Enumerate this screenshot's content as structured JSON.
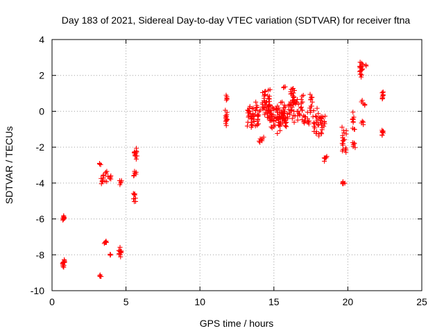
{
  "chart_data": {
    "type": "scatter",
    "title": "Day 183 of 2021, Sidereal Day-to-day VTEC variation (SDTVAR) for receiver ftna",
    "xlabel": "GPS time / hours",
    "ylabel": "SDTVAR / TECUs",
    "xlim": [
      0,
      25
    ],
    "ylim": [
      -10,
      4
    ],
    "xticks": [
      0,
      5,
      10,
      15,
      20,
      25
    ],
    "yticks": [
      -10,
      -8,
      -6,
      -4,
      -2,
      0,
      2,
      4
    ],
    "grid": true,
    "marker": "+",
    "marker_color": "#ff0000",
    "clusters": [
      {
        "x0": 0.72,
        "x1": 0.82,
        "y0": -6.1,
        "y1": -5.8,
        "n": 8
      },
      {
        "x0": 0.7,
        "x1": 0.85,
        "y0": -8.8,
        "y1": -8.2,
        "n": 12
      },
      {
        "x0": 3.2,
        "x1": 3.35,
        "y0": -3.0,
        "y1": -2.9,
        "n": 3
      },
      {
        "x0": 3.3,
        "x1": 3.8,
        "y0": -4.2,
        "y1": -3.2,
        "n": 14
      },
      {
        "x0": 3.8,
        "x1": 4.0,
        "y0": -3.9,
        "y1": -3.5,
        "n": 4
      },
      {
        "x0": 3.2,
        "x1": 3.35,
        "y0": -9.25,
        "y1": -9.1,
        "n": 4
      },
      {
        "x0": 3.5,
        "x1": 3.7,
        "y0": -7.4,
        "y1": -7.2,
        "n": 6
      },
      {
        "x0": 3.9,
        "x1": 4.0,
        "y0": -8.1,
        "y1": -7.9,
        "n": 3
      },
      {
        "x0": 4.5,
        "x1": 4.7,
        "y0": -4.1,
        "y1": -3.8,
        "n": 5
      },
      {
        "x0": 4.5,
        "x1": 4.7,
        "y0": -8.2,
        "y1": -7.5,
        "n": 12
      },
      {
        "x0": 5.5,
        "x1": 5.75,
        "y0": -2.8,
        "y1": -1.9,
        "n": 12
      },
      {
        "x0": 5.5,
        "x1": 5.7,
        "y0": -3.7,
        "y1": -3.2,
        "n": 6
      },
      {
        "x0": 5.5,
        "x1": 5.7,
        "y0": -5.1,
        "y1": -4.4,
        "n": 8
      },
      {
        "x0": 11.75,
        "x1": 11.85,
        "y0": 0.6,
        "y1": 0.9,
        "n": 5
      },
      {
        "x0": 11.7,
        "x1": 11.85,
        "y0": -0.9,
        "y1": 0.1,
        "n": 14
      },
      {
        "x0": 13.2,
        "x1": 13.6,
        "y0": -1.0,
        "y1": 0.4,
        "n": 25
      },
      {
        "x0": 13.6,
        "x1": 14.1,
        "y0": -1.2,
        "y1": 0.7,
        "n": 25
      },
      {
        "x0": 14.0,
        "x1": 14.4,
        "y0": -1.9,
        "y1": -1.4,
        "n": 7
      },
      {
        "x0": 14.2,
        "x1": 14.8,
        "y0": -0.6,
        "y1": 1.5,
        "n": 45
      },
      {
        "x0": 14.6,
        "x1": 15.8,
        "y0": -1.3,
        "y1": 0.7,
        "n": 70
      },
      {
        "x0": 15.3,
        "x1": 16.0,
        "y0": -0.9,
        "y1": 0.2,
        "n": 25
      },
      {
        "x0": 15.6,
        "x1": 15.8,
        "y0": 1.3,
        "y1": 1.4,
        "n": 3
      },
      {
        "x0": 16.0,
        "x1": 16.4,
        "y0": -0.7,
        "y1": 1.8,
        "n": 30
      },
      {
        "x0": 16.3,
        "x1": 17.0,
        "y0": -0.6,
        "y1": 1.1,
        "n": 30
      },
      {
        "x0": 17.0,
        "x1": 17.4,
        "y0": -1.1,
        "y1": 0.2,
        "n": 14
      },
      {
        "x0": 17.4,
        "x1": 17.6,
        "y0": -0.6,
        "y1": 1.4,
        "n": 12
      },
      {
        "x0": 17.6,
        "x1": 18.5,
        "y0": -1.5,
        "y1": 0.3,
        "n": 40
      },
      {
        "x0": 18.4,
        "x1": 18.6,
        "y0": -2.8,
        "y1": -2.4,
        "n": 6
      },
      {
        "x0": 19.6,
        "x1": 19.8,
        "y0": -4.1,
        "y1": -3.9,
        "n": 6
      },
      {
        "x0": 19.6,
        "x1": 19.9,
        "y0": -2.5,
        "y1": -0.8,
        "n": 20
      },
      {
        "x0": 20.3,
        "x1": 20.5,
        "y0": -2.2,
        "y1": -1.6,
        "n": 6
      },
      {
        "x0": 20.3,
        "x1": 20.5,
        "y0": -1.1,
        "y1": 0.0,
        "n": 10
      },
      {
        "x0": 20.8,
        "x1": 21.0,
        "y0": 1.9,
        "y1": 2.8,
        "n": 20
      },
      {
        "x0": 20.9,
        "x1": 21.1,
        "y0": -0.8,
        "y1": -0.4,
        "n": 4
      },
      {
        "x0": 20.9,
        "x1": 21.2,
        "y0": 0.2,
        "y1": 0.7,
        "n": 5
      },
      {
        "x0": 21.2,
        "x1": 21.3,
        "y0": 2.5,
        "y1": 2.6,
        "n": 2
      },
      {
        "x0": 22.3,
        "x1": 22.4,
        "y0": 0.6,
        "y1": 1.2,
        "n": 10
      },
      {
        "x0": 22.3,
        "x1": 22.4,
        "y0": -1.5,
        "y1": -0.9,
        "n": 8
      }
    ]
  }
}
